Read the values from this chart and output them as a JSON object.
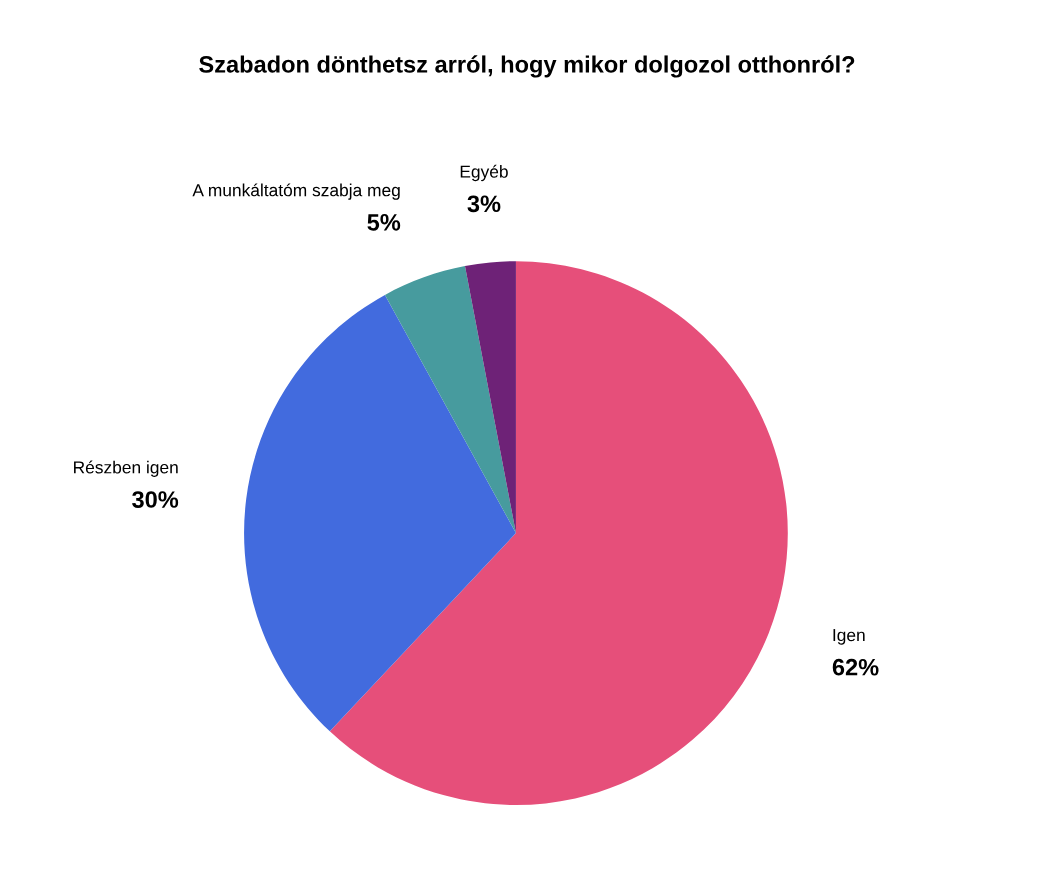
{
  "chart_data": {
    "type": "pie",
    "title": "Szabadon dönthetsz arról, hogy mikor dolgozol otthonról?",
    "categories": [
      "Igen",
      "Részben igen",
      "A munkáltatóm szabja meg",
      "Egyéb"
    ],
    "values": [
      62,
      30,
      5,
      3
    ],
    "colors": [
      "#e64f7a",
      "#426bde",
      "#479b9e",
      "#6e2277"
    ],
    "value_labels": [
      "62%",
      "30%",
      "5%",
      "3%"
    ]
  }
}
